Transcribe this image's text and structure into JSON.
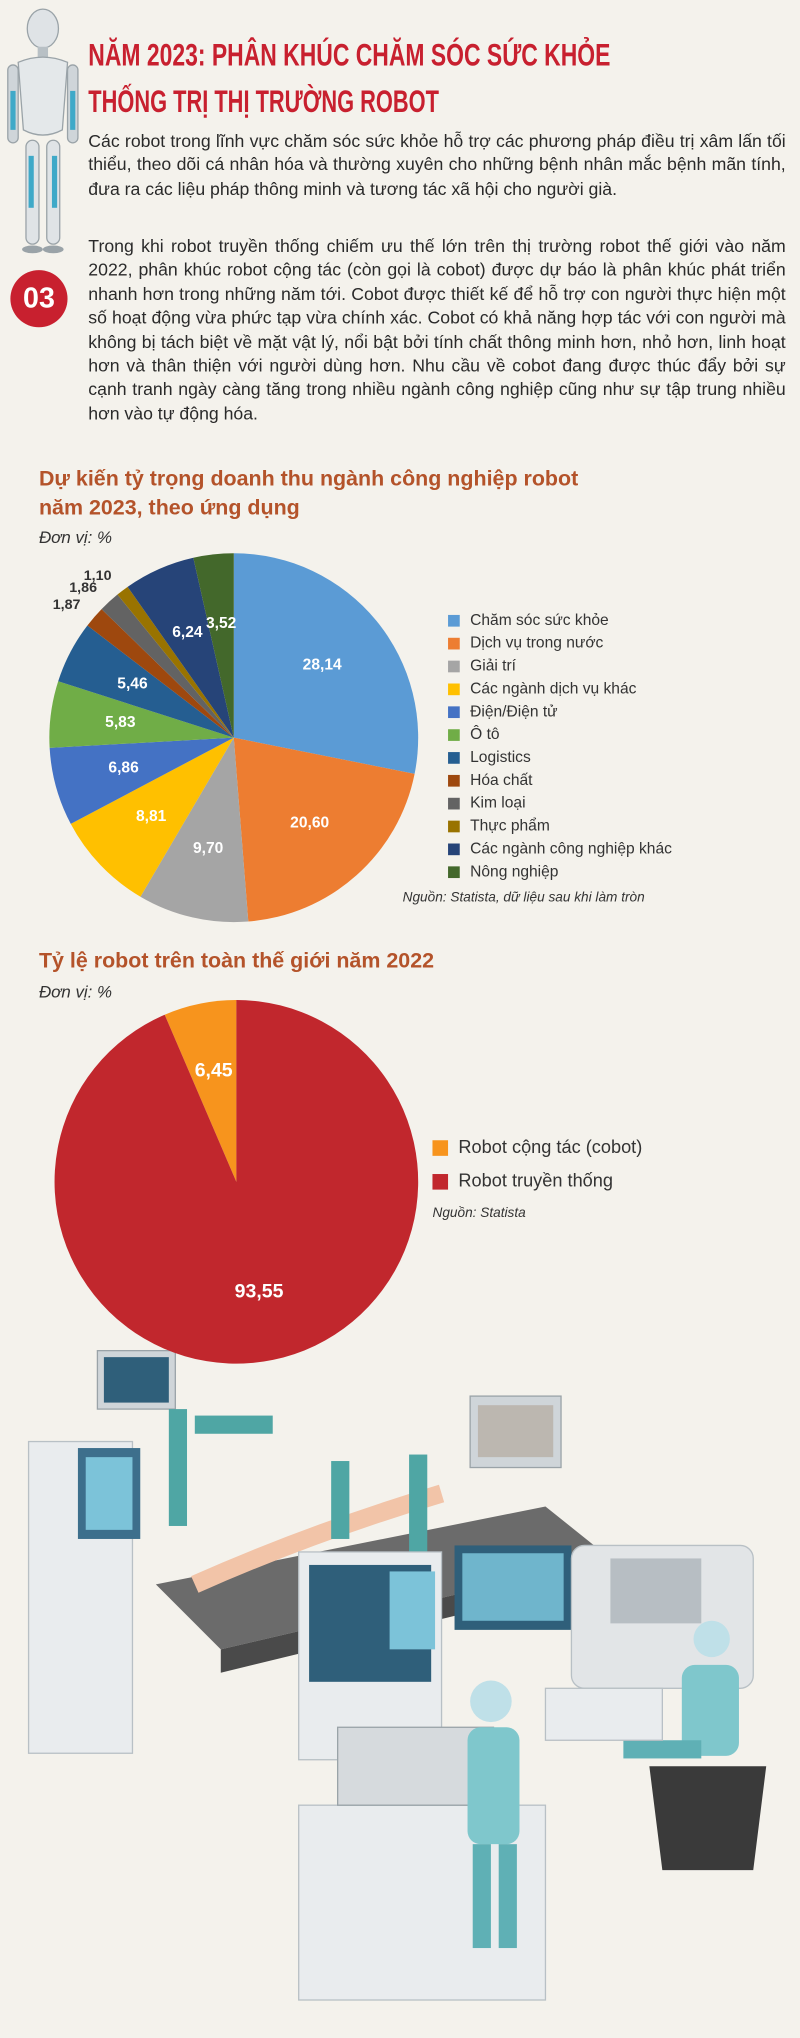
{
  "header": {
    "badge": "03",
    "title_lines": [
      "NĂM 2023: PHÂN KHÚC CHĂM SÓC SỨC KHỎE",
      "THỐNG TRỊ THỊ TRƯỜNG ROBOT"
    ],
    "paragraphs": [
      "Các robot trong lĩnh vực chăm sóc sức khỏe hỗ trợ các phương pháp điều trị xâm lấn tối thiểu, theo dõi cá nhân hóa và thường xuyên cho những bệnh nhân mắc bệnh mãn tính, đưa ra các liệu pháp thông minh và tương tác xã hội cho người già.",
      "Trong khi robot truyền thống chiếm ưu thế lớn trên thị trường robot thế giới vào năm 2022, phân khúc robot cộng tác (còn gọi là cobot) được dự báo là phân khúc phát triển nhanh hơn trong những năm tới. Cobot được thiết kế để hỗ trợ con người thực hiện một số hoạt động vừa phức tạp vừa chính xác. Cobot có khả năng hợp tác với con người mà không bị tách biệt về mặt vật lý, nổi bật bởi tính chất thông minh hơn, nhỏ hơn, linh hoạt hơn và thân thiện với người dùng hơn. Nhu cầu về cobot đang được thúc đẩy bởi sự cạnh tranh ngày càng tăng trong nhiều ngành công nghiệp cũng như sự tập trung nhiều hơn vào tự động hóa."
    ]
  },
  "chart_data": [
    {
      "type": "pie",
      "title": "Dự kiến tỷ trọng doanh thu ngành công nghiệp robot năm 2023, theo ứng dụng",
      "unit_note": "Đơn vị: %",
      "source": "Nguồn: Statista, dữ liệu sau khi làm tròn",
      "direction": "clockwise",
      "categories": [
        "Chăm sóc sức khỏe",
        "Dịch vụ trong nước",
        "Giải trí",
        "Các ngành dịch vụ khác",
        "Điện/Điện tử",
        "Ô tô",
        "Logistics",
        "Hóa chất",
        "Kim loại",
        "Thực phẩm",
        "Các ngành công nghiệp khác",
        "Nông nghiệp"
      ],
      "values": [
        28.14,
        20.6,
        9.7,
        8.81,
        6.86,
        5.83,
        5.46,
        1.87,
        1.86,
        1.1,
        6.24,
        3.52
      ],
      "value_labels": [
        "28,14",
        "20,60",
        "9,70",
        "8,81",
        "6,86",
        "5,83",
        "5,46",
        "1,87",
        "1,86",
        "1,10",
        "6,24",
        "3,52"
      ],
      "colors": [
        "#5b9bd5",
        "#ed7d31",
        "#a5a5a5",
        "#ffc000",
        "#4472c4",
        "#70ad47",
        "#255e91",
        "#9e480e",
        "#636363",
        "#997300",
        "#264478",
        "#43682b"
      ]
    },
    {
      "type": "pie",
      "title": "Tỷ lệ robot trên toàn thế giới năm 2022",
      "unit_note": "Đơn vị: %",
      "source": "Nguồn: Statista",
      "direction": "counterclockwise",
      "categories": [
        "Robot cộng tác (cobot)",
        "Robot truyền thống"
      ],
      "values": [
        6.45,
        93.55
      ],
      "value_labels": [
        "6,45",
        "93,55"
      ],
      "colors": [
        "#f7941d",
        "#c1272d"
      ]
    }
  ]
}
